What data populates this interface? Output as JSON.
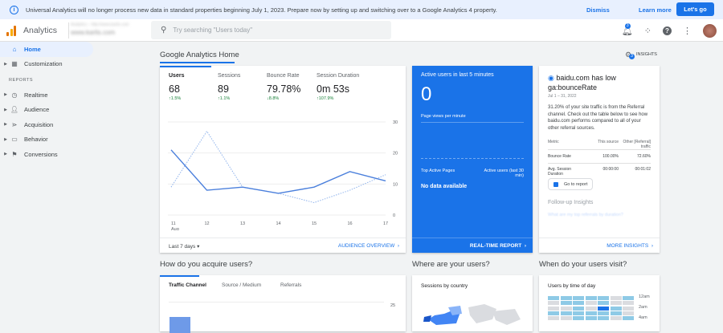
{
  "banner": {
    "message": "Universal Analytics will no longer process new data in standard properties beginning July 1, 2023. Prepare now by setting up and switching over to a Google Analytics 4 property.",
    "dismiss": "Dismiss",
    "learn_more": "Learn more",
    "lets_go": "Let's go"
  },
  "header": {
    "app_title": "Analytics",
    "account_line": "Analytics – http://www.karlis.com",
    "property": "www.karlis.com",
    "search_placeholder": "Try searching \"Users today\"",
    "notifications_count": "3"
  },
  "sidebar": {
    "reports_label": "REPORTS",
    "items": [
      {
        "label": "Home",
        "icon": "home-icon",
        "active": true
      },
      {
        "label": "Customization",
        "icon": "dashboard-icon"
      },
      {
        "label": "Realtime",
        "icon": "clock-icon"
      },
      {
        "label": "Audience",
        "icon": "person-icon"
      },
      {
        "label": "Acquisition",
        "icon": "acquisition-icon"
      },
      {
        "label": "Behavior",
        "icon": "behavior-icon"
      },
      {
        "label": "Conversions",
        "icon": "flag-icon"
      }
    ]
  },
  "home": {
    "title": "Google Analytics Home",
    "insights_label": "INSIGHTS",
    "insights_count": "3"
  },
  "overview": {
    "metrics": [
      {
        "label": "Users",
        "value": "68",
        "change": "↑1.5%",
        "direction": "up"
      },
      {
        "label": "Sessions",
        "value": "89",
        "change": "↑1.1%",
        "direction": "up"
      },
      {
        "label": "Bounce Rate",
        "value": "79.78%",
        "change": "↓8.8%",
        "direction": "down"
      },
      {
        "label": "Session Duration",
        "value": "0m 53s",
        "change": "↑107.9%",
        "direction": "up"
      }
    ],
    "date_range": "Last 7 days",
    "link": "AUDIENCE OVERVIEW"
  },
  "chart_data": {
    "type": "line",
    "categories": [
      "11",
      "12",
      "13",
      "14",
      "15",
      "16",
      "17"
    ],
    "x_sublabel": "Aug",
    "ylim": [
      0,
      30
    ],
    "yticks": [
      "0",
      "10",
      "20",
      "30"
    ],
    "grid": true,
    "series": [
      {
        "style": "solid",
        "values": [
          21,
          8,
          9,
          7,
          9,
          14,
          11
        ],
        "color": "#4a7fdc"
      },
      {
        "style": "dotted",
        "values": [
          9,
          27,
          9,
          7,
          4,
          8,
          13
        ],
        "color": "#8fb3ec"
      }
    ]
  },
  "realtime": {
    "title": "Active users in last 5 minutes",
    "value": "0",
    "page_views": "Page views per minute",
    "top_pages": "Top Active Pages",
    "active_users_col": "Active users (last 30 min)",
    "no_data": "No data available",
    "link": "REAL-TIME REPORT"
  },
  "insight": {
    "title": "baidu.com has low ga:bounceRate",
    "date": "Jul 1 – 31, 2022",
    "body": "31.20% of your site traffic is from the Referral channel. Check out the table below to see how baidu.com performs compared to all of your other referral sources.",
    "table": {
      "headers": [
        "Metric",
        "This source",
        "Other [Referral] traffic"
      ],
      "rows": [
        [
          "Bounce Rate",
          "100.00%",
          "72.60%"
        ],
        [
          "Avg. Session Duration",
          "00:00:00",
          "00:01:02"
        ]
      ]
    },
    "go_to_report": "Go to report",
    "followup_title": "Follow-up Insights",
    "followup_link": "What are my top referrals by duration?",
    "link": "MORE INSIGHTS"
  },
  "acquire": {
    "title": "How do you acquire users?",
    "tabs": [
      "Traffic Channel",
      "Source / Medium",
      "Referrals"
    ],
    "ytick": "25"
  },
  "where": {
    "title": "Where are your users?",
    "subtitle": "Sessions by country"
  },
  "when": {
    "title": "When do your users visit?",
    "subtitle": "Users by time of day",
    "time_labels": [
      "12am",
      "2am",
      "4am"
    ]
  }
}
